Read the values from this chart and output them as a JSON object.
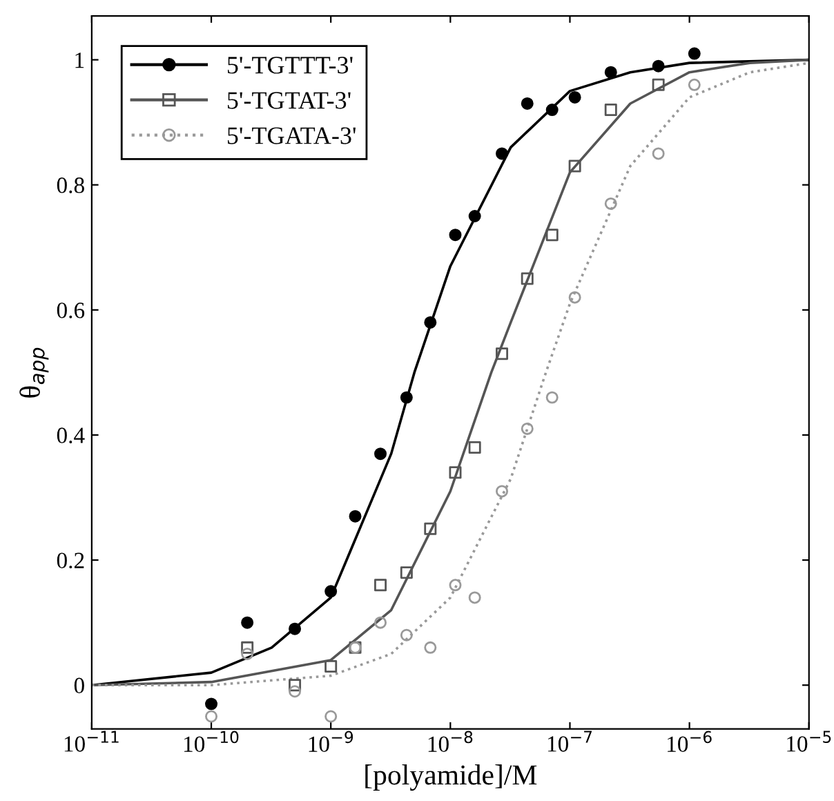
{
  "chart_data": {
    "type": "scatter",
    "xlabel": "[polyamide]/M",
    "ylabel": "θ$_{app}$",
    "log": "x",
    "legend": "top left",
    "grid": false,
    "xlim": [
      1e-11,
      1e-05
    ],
    "ylim": [
      -0.07,
      1.07
    ],
    "xticks": [
      {
        "value": 1e-11,
        "label": "10$^{−11}$"
      },
      {
        "value": 1e-10,
        "label": "10$^{−10}$"
      },
      {
        "value": 1e-09,
        "label": "10$^{−9}$"
      },
      {
        "value": 1e-08,
        "label": "10$^{−8}$"
      },
      {
        "value": 1e-07,
        "label": "10$^{−7}$"
      },
      {
        "value": 1e-06,
        "label": "10$^{−6}$"
      },
      {
        "value": 1e-05,
        "label": "10$^{−5}$"
      }
    ],
    "yticks": [
      0,
      0.2,
      0.4,
      0.6,
      0.8,
      1
    ],
    "series": [
      {
        "type": "line",
        "color": "#000000",
        "line_style": "solid",
        "marker": "none",
        "x": [
          1e-11,
          1e-10,
          3.2e-10,
          1e-09,
          3.2e-09,
          5e-09,
          1e-08,
          3.2e-08,
          1e-07,
          3.2e-07,
          1e-06,
          1e-05
        ],
        "values": [
          0,
          0.02,
          0.06,
          0.14,
          0.37,
          0.5,
          0.67,
          0.86,
          0.95,
          0.98,
          0.995,
          1.0
        ]
      },
      {
        "type": "line",
        "color": "#555555",
        "line_style": "solid",
        "marker": "none",
        "x": [
          1e-11,
          1e-10,
          1e-09,
          3.2e-09,
          1e-08,
          2.2e-08,
          3.2e-08,
          1e-07,
          3.2e-07,
          1e-06,
          3.2e-06,
          1e-05
        ],
        "values": [
          0,
          0.005,
          0.04,
          0.12,
          0.31,
          0.5,
          0.58,
          0.82,
          0.93,
          0.98,
          0.995,
          1.0
        ]
      },
      {
        "type": "line",
        "color": "#999999",
        "line_style": "dotted",
        "marker": "none",
        "x": [
          1e-11,
          1e-10,
          1e-09,
          3.2e-09,
          1e-08,
          3.2e-08,
          6.3e-08,
          1e-07,
          3.2e-07,
          1e-06,
          3.2e-06,
          1e-05
        ],
        "values": [
          0,
          0.0,
          0.015,
          0.05,
          0.14,
          0.33,
          0.5,
          0.61,
          0.83,
          0.94,
          0.98,
          0.995
        ]
      },
      {
        "name": "5'-TGTTT-3'",
        "color": "#000000",
        "marker": "circle",
        "x": [
          1e-10,
          2e-10,
          5e-10,
          1e-09,
          1.6e-09,
          2.6e-09,
          4.3e-09,
          6.8e-09,
          1.1e-08,
          1.6e-08,
          2.7e-08,
          4.4e-08,
          7.1e-08,
          1.1e-07,
          2.2e-07,
          5.5e-07,
          1.1e-06
        ],
        "values": [
          -0.03,
          0.1,
          0.09,
          0.15,
          0.27,
          0.37,
          0.46,
          0.58,
          0.72,
          0.75,
          0.85,
          0.93,
          0.92,
          0.94,
          0.98,
          0.99,
          1.01
        ]
      },
      {
        "name": "5'-TGTAT-3'",
        "color": "#555555",
        "marker": "square",
        "x": [
          2e-10,
          5e-10,
          1e-09,
          1.6e-09,
          2.6e-09,
          4.3e-09,
          6.8e-09,
          1.1e-08,
          1.6e-08,
          2.7e-08,
          4.4e-08,
          7.1e-08,
          1.1e-07,
          2.2e-07,
          5.5e-07
        ],
        "values": [
          0.06,
          0.0,
          0.03,
          0.06,
          0.16,
          0.18,
          0.25,
          0.34,
          0.38,
          0.53,
          0.65,
          0.72,
          0.83,
          0.92,
          0.96
        ]
      },
      {
        "name": "5'-TGATA-3'",
        "color": "#999999",
        "marker": "circle",
        "x": [
          1e-10,
          2e-10,
          5e-10,
          1e-09,
          1.6e-09,
          2.6e-09,
          4.3e-09,
          6.8e-09,
          1.1e-08,
          1.6e-08,
          2.7e-08,
          4.4e-08,
          7.1e-08,
          1.1e-07,
          2.2e-07,
          5.5e-07,
          1.1e-06
        ],
        "values": [
          -0.05,
          0.05,
          -0.01,
          -0.05,
          0.06,
          0.1,
          0.08,
          0.06,
          0.16,
          0.14,
          0.31,
          0.41,
          0.46,
          0.62,
          0.77,
          0.85,
          0.96
        ]
      }
    ]
  }
}
